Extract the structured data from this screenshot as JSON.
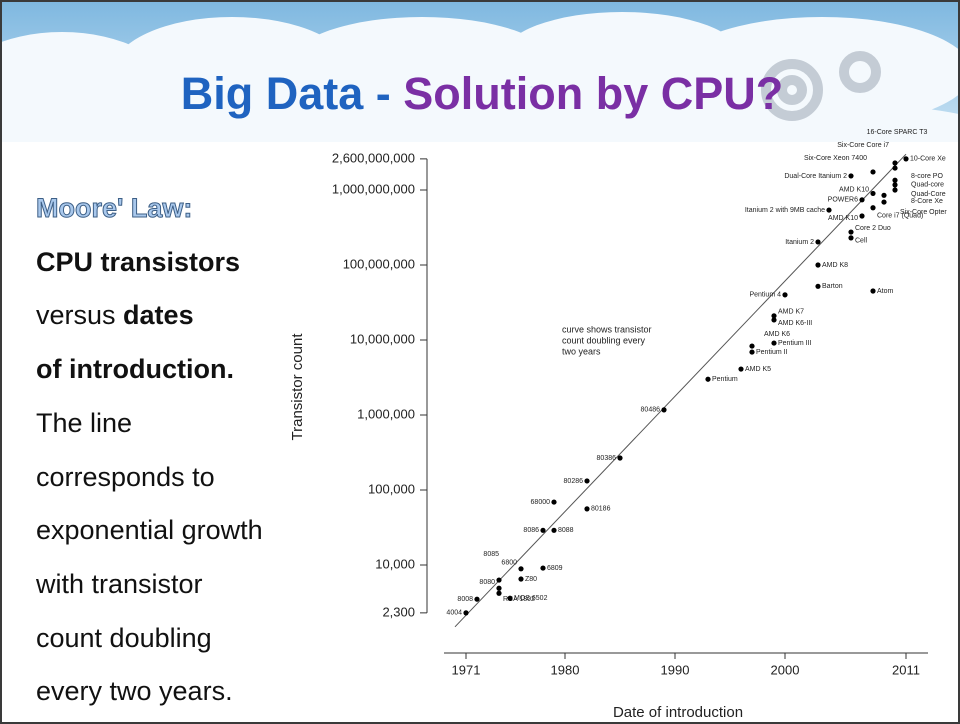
{
  "slide": {
    "title": [
      "Big Data -",
      "Solution by CPU?"
    ],
    "body": [
      [
        {
          "text": "Moore' Law:",
          "style": "heading"
        }
      ],
      [
        {
          "text": "CPU transistors",
          "bold": true
        }
      ],
      [
        {
          "text": "versus"
        },
        {
          "text": "dates",
          "bold": true
        }
      ],
      [
        {
          "text": "of introduction.",
          "bold": true
        }
      ],
      [
        {
          "text": "The line"
        }
      ],
      [
        {
          "text": "corresponds to"
        }
      ],
      [
        {
          "text": "exponential growth"
        }
      ],
      [
        {
          "text": "with transistor"
        }
      ],
      [
        {
          "text": "count doubling"
        }
      ],
      [
        {
          "text": "every two years."
        }
      ]
    ]
  },
  "chart_data": {
    "type": "scatter",
    "x_label": "Date of introduction",
    "y_label": "Transistor count",
    "annotation": [
      "curve shows transistor",
      "count doubling every",
      "two years"
    ],
    "log_scale_y": true,
    "color": "#000000",
    "xlim": [
      1969,
      2013
    ],
    "xticks": [
      1971,
      1980,
      1990,
      2000,
      2011
    ],
    "ylim": [
      1000,
      5000000000
    ],
    "yticks": [
      {
        "value": 2300,
        "label": "2,300"
      },
      {
        "value": 10000,
        "label": "10,000"
      },
      {
        "value": 100000,
        "label": "100,000"
      },
      {
        "value": 1000000,
        "label": "1,000,000"
      },
      {
        "value": 10000000,
        "label": "10,000,000"
      },
      {
        "value": 100000000,
        "label": "100,000,000"
      },
      {
        "value": 1000000000,
        "label": "1,000,000,000"
      },
      {
        "value": 2600000000,
        "label": "2,600,000,000"
      }
    ],
    "point_labels": [
      "4004",
      "8008",
      "8080",
      "RCA 1802",
      "8085",
      "6800",
      "Z80",
      "MOS 6502",
      "6809",
      "8086",
      "8088",
      "68000",
      "80186",
      "80286",
      "80386",
      "80486",
      "Pentium",
      "AMD K5",
      "Pentium II",
      "AMD K6",
      "Pentium III",
      "AMD K7",
      "AMD K6-III",
      "Pentium 4",
      "Barton",
      "AMD K8",
      "Atom",
      "Itanium 2",
      "Cell",
      "Core 2 Duo",
      "AMD K10",
      "Core i7 (Quad)",
      "Itanium 2 with 9MB cache",
      "POWER6",
      "AMD K10",
      "Dual-Core Itanium 2",
      "Six-Core Xeon 7400",
      "Six-Core Core i7",
      "16-Core SPARC T3",
      "10-Core Xe",
      "8-core PO",
      "Quad-core",
      "Quad-Core",
      "8-Core Xe",
      "Six-Core Opter"
    ],
    "x": [
      1971,
      1972,
      1974,
      1974,
      1974,
      1976,
      1976,
      1975,
      1978,
      1978,
      1979,
      1979,
      1982,
      1982,
      1985,
      1989,
      1993,
      1996,
      1997,
      1997,
      1999,
      1999,
      1999,
      2000,
      2003,
      2003,
      2008,
      2003,
      2006,
      2006,
      2007,
      2008,
      2004,
      2007,
      2008,
      2006,
      2008,
      2010,
      2010,
      2011,
      2010,
      2010,
      2010,
      2009,
      2009
    ],
    "values": [
      2300,
      3500,
      4900,
      4200,
      6300,
      8900,
      6500,
      3600,
      9100,
      29000,
      29000,
      69000,
      56000,
      132000,
      267000,
      1170000,
      3000000,
      4100000,
      6900000,
      8300000,
      9100000,
      21000000,
      18500000,
      40000000,
      52000000,
      100000000,
      45000000,
      203000000,
      230000000,
      275000000,
      450000000,
      580000000,
      540000000,
      740000000,
      900000000,
      1540000000,
      1740000000,
      2290000000,
      1960000000,
      2600000000,
      1350000000,
      1170000000,
      1000000000,
      850000000,
      690000000
    ],
    "trend": {
      "x": [
        1970,
        2011
      ],
      "values": [
        1500,
        3000000000
      ]
    }
  }
}
